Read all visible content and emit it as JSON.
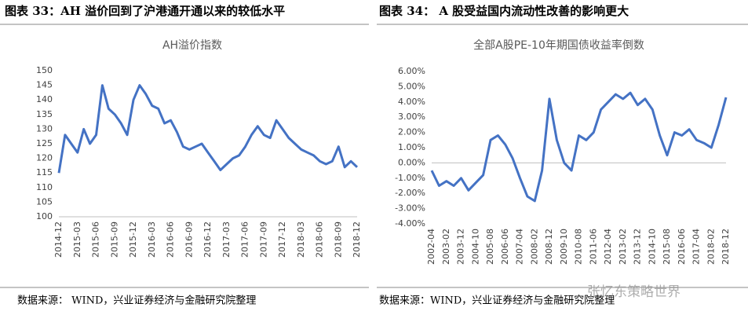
{
  "captions": [
    "图表 33：AH 溢价回到了沪港通开通以来的较低水平",
    "图表 34：  A 股受益国内流动性改善的影响更大"
  ],
  "sources": [
    "数据来源：  WIND，兴业证券经济与金融研究院整理",
    "数据来源：WIND，兴业证券经济与金融研究院整理"
  ],
  "watermark": "张忆东策略世界",
  "chart_data": [
    {
      "type": "line",
      "title": "AH溢价指数",
      "categories": [
        "2014-12",
        null,
        null,
        "2015-03",
        null,
        null,
        "2015-06",
        null,
        null,
        "2015-09",
        null,
        null,
        "2015-12",
        null,
        null,
        "2016-03",
        null,
        null,
        "2016-06",
        null,
        null,
        "2016-09",
        null,
        null,
        "2016-12",
        null,
        null,
        "2017-03",
        null,
        null,
        "2017-06",
        null,
        null,
        "2017-09",
        null,
        null,
        "2017-12",
        null,
        null,
        "2018-03",
        null,
        null,
        "2018-06",
        null,
        null,
        "2018-09",
        null,
        null,
        "2018-12"
      ],
      "series": [
        {
          "name": "AH溢价指数",
          "color": "#4472c4",
          "values": [
            115,
            128,
            125,
            122,
            130,
            125,
            128,
            145,
            137,
            135,
            132,
            128,
            140,
            145,
            142,
            138,
            137,
            132,
            133,
            129,
            124,
            123,
            124,
            125,
            122,
            119,
            116,
            118,
            120,
            121,
            124,
            128,
            131,
            128,
            127,
            133,
            130,
            127,
            125,
            123,
            122,
            121,
            119,
            118,
            119,
            124,
            117,
            119,
            117
          ]
        }
      ],
      "ylim": [
        100,
        150
      ],
      "yticks": [
        100,
        105,
        110,
        115,
        120,
        125,
        130,
        135,
        140,
        145,
        150
      ],
      "grid": false
    },
    {
      "type": "line",
      "title": "全部A股PE-10年期国债收益率倒数",
      "categories": [
        "2002-04",
        null,
        "2003-02",
        null,
        "2003-12",
        null,
        "2004-10",
        null,
        "2005-08",
        null,
        "2006-06",
        null,
        "2007-04",
        null,
        "2008-02",
        null,
        "2008-12",
        null,
        "2009-10",
        null,
        "2010-08",
        null,
        "2011-06",
        null,
        "2012-04",
        null,
        "2013-02",
        null,
        "2013-12",
        null,
        "2014-10",
        null,
        "2015-08",
        null,
        "2016-06",
        null,
        "2017-04",
        null,
        "2018-02",
        null,
        "2018-12"
      ],
      "series": [
        {
          "name": "全部A股PE-10年期国债收益率倒数",
          "color": "#4472c4",
          "values": [
            -0.5,
            -1.5,
            -1.2,
            -1.5,
            -1.0,
            -1.8,
            -1.3,
            -0.8,
            1.5,
            1.8,
            1.2,
            0.3,
            -1.0,
            -2.2,
            -2.5,
            -0.5,
            4.2,
            1.5,
            0.0,
            -0.5,
            1.8,
            1.5,
            2.0,
            3.5,
            4.0,
            4.5,
            4.2,
            4.6,
            3.8,
            4.2,
            3.5,
            1.8,
            0.5,
            2.0,
            1.8,
            2.2,
            1.5,
            1.3,
            1.0,
            2.5,
            4.3
          ]
        }
      ],
      "ylim": [
        -4,
        6
      ],
      "yticks": [
        {
          "value": -4,
          "label": "-4.00%"
        },
        {
          "value": -3,
          "label": "-3.00%"
        },
        {
          "value": -2,
          "label": "-2.00%"
        },
        {
          "value": -1,
          "label": "-1.00%"
        },
        {
          "value": 0,
          "label": "0.00%"
        },
        {
          "value": 1,
          "label": "1.00%"
        },
        {
          "value": 2,
          "label": "2.00%"
        },
        {
          "value": 3,
          "label": "3.00%"
        },
        {
          "value": 4,
          "label": "4.00%"
        },
        {
          "value": 5,
          "label": "5.00%"
        },
        {
          "value": 6,
          "label": "6.00%"
        }
      ],
      "grid": false
    }
  ]
}
